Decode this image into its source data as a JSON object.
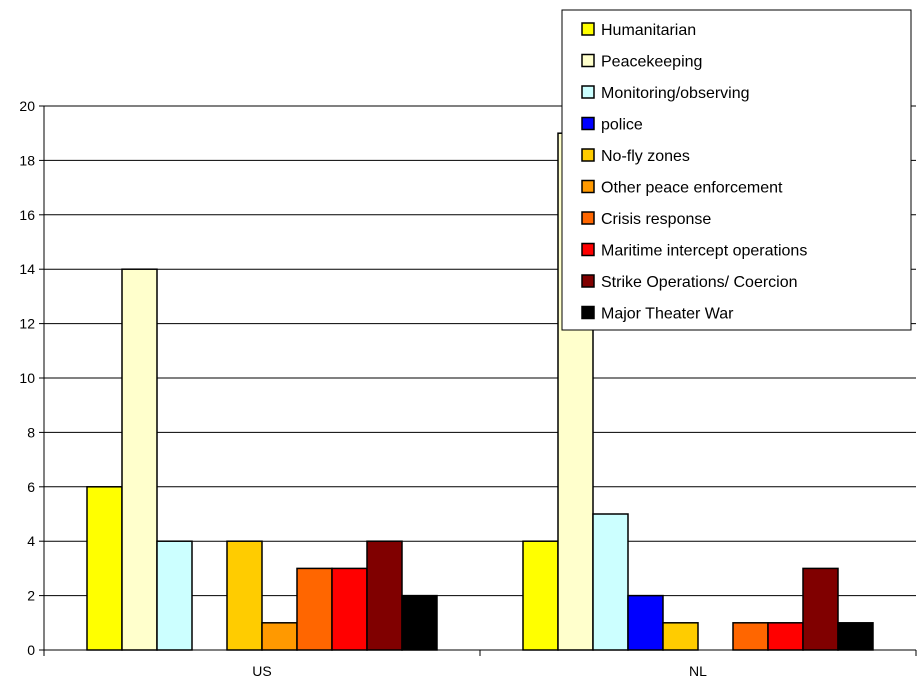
{
  "chart_data": {
    "type": "bar",
    "categories": [
      "US",
      "NL"
    ],
    "ylim": [
      0,
      20
    ],
    "y_ticks": [
      0,
      2,
      4,
      6,
      8,
      10,
      12,
      14,
      16,
      18,
      20
    ],
    "grid": true,
    "legend_position": "top-right",
    "series": [
      {
        "name": "Humanitarian",
        "color": "#FFFF00",
        "values": [
          6,
          4
        ]
      },
      {
        "name": "Peacekeeping",
        "color": "#FFFFCC",
        "values": [
          14,
          19
        ]
      },
      {
        "name": "Monitoring/observing",
        "color": "#CCFFFF",
        "values": [
          4,
          5
        ]
      },
      {
        "name": "police",
        "color": "#0000FF",
        "values": [
          0,
          2
        ]
      },
      {
        "name": "No-fly zones",
        "color": "#FFCC00",
        "values": [
          4,
          1
        ]
      },
      {
        "name": "Other peace enforcement",
        "color": "#FF9900",
        "values": [
          1,
          0
        ]
      },
      {
        "name": "Crisis response",
        "color": "#FF6600",
        "values": [
          3,
          1
        ]
      },
      {
        "name": "Maritime intercept operations",
        "color": "#FF0000",
        "values": [
          3,
          1
        ]
      },
      {
        "name": "Strike Operations/ Coercion",
        "color": "#800000",
        "values": [
          4,
          3
        ]
      },
      {
        "name": "Major Theater War",
        "color": "#000000",
        "values": [
          2,
          1
        ]
      }
    ]
  }
}
